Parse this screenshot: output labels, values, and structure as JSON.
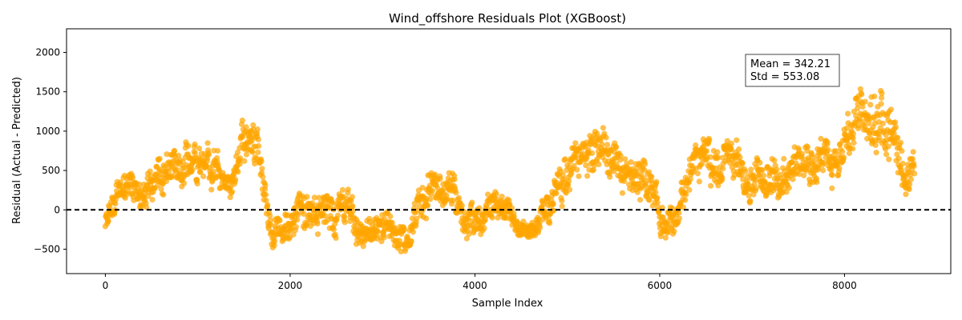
{
  "chart_data": {
    "type": "scatter",
    "title": "Wind_offshore Residuals Plot (XGBoost)",
    "xlabel": "Sample Index",
    "ylabel": "Residual (Actual - Predicted)",
    "xlim": [
      -420,
      9150
    ],
    "ylim": [
      -810,
      2300
    ],
    "xticks": [
      0,
      2000,
      4000,
      6000,
      8000
    ],
    "xtick_labels": [
      "0",
      "2000",
      "4000",
      "6000",
      "8000"
    ],
    "yticks": [
      -500,
      0,
      500,
      1000,
      1500,
      2000
    ],
    "ytick_labels": [
      "−500",
      "0",
      "500",
      "1000",
      "1500",
      "2000"
    ],
    "reference_line": {
      "y": 0,
      "style": "dashed",
      "color": "#000000"
    },
    "annotation": {
      "lines": [
        "Mean = 342.21",
        "Std = 553.08"
      ],
      "position": "upper-right"
    },
    "series": [
      {
        "color": "#FFA500",
        "alpha": 0.7,
        "n_points": 8760,
        "trend": {
          "x": [
            0,
            150,
            300,
            450,
            600,
            750,
            900,
            1050,
            1200,
            1350,
            1500,
            1650,
            1800,
            1950,
            2100,
            2250,
            2400,
            2550,
            2700,
            2850,
            3000,
            3150,
            3300,
            3450,
            3600,
            3750,
            3900,
            4050,
            4200,
            4350,
            4500,
            4650,
            4800,
            4950,
            5100,
            5250,
            5400,
            5550,
            5700,
            5850,
            6000,
            6150,
            6300,
            6450,
            6600,
            6750,
            6900,
            7050,
            7200,
            7350,
            7500,
            7650,
            7800,
            7950,
            8100,
            8250,
            8400,
            8550,
            8700
          ],
          "y": [
            -150,
            250,
            200,
            150,
            500,
            500,
            700,
            600,
            600,
            200,
            1000,
            700,
            -200,
            -250,
            0,
            0,
            100,
            100,
            -100,
            -300,
            -200,
            -250,
            -300,
            200,
            300,
            200,
            -100,
            -200,
            0,
            -100,
            -250,
            -300,
            100,
            400,
            600,
            800,
            750,
            600,
            500,
            400,
            -100,
            -200,
            300,
            700,
            600,
            800,
            400,
            400,
            400,
            500,
            600,
            600,
            700,
            500,
            1200,
            1000,
            1200,
            800,
            500
          ],
          "spread": [
            250,
            300,
            300,
            300,
            400,
            400,
            450,
            400,
            350,
            250,
            450,
            400,
            300,
            300,
            400,
            400,
            400,
            350,
            400,
            300,
            350,
            300,
            300,
            400,
            400,
            400,
            350,
            300,
            350,
            250,
            200,
            200,
            350,
            400,
            450,
            450,
            450,
            400,
            400,
            450,
            350,
            300,
            400,
            450,
            450,
            450,
            400,
            400,
            400,
            400,
            400,
            400,
            400,
            400,
            500,
            550,
            650,
            550,
            400
          ]
        }
      }
    ]
  }
}
